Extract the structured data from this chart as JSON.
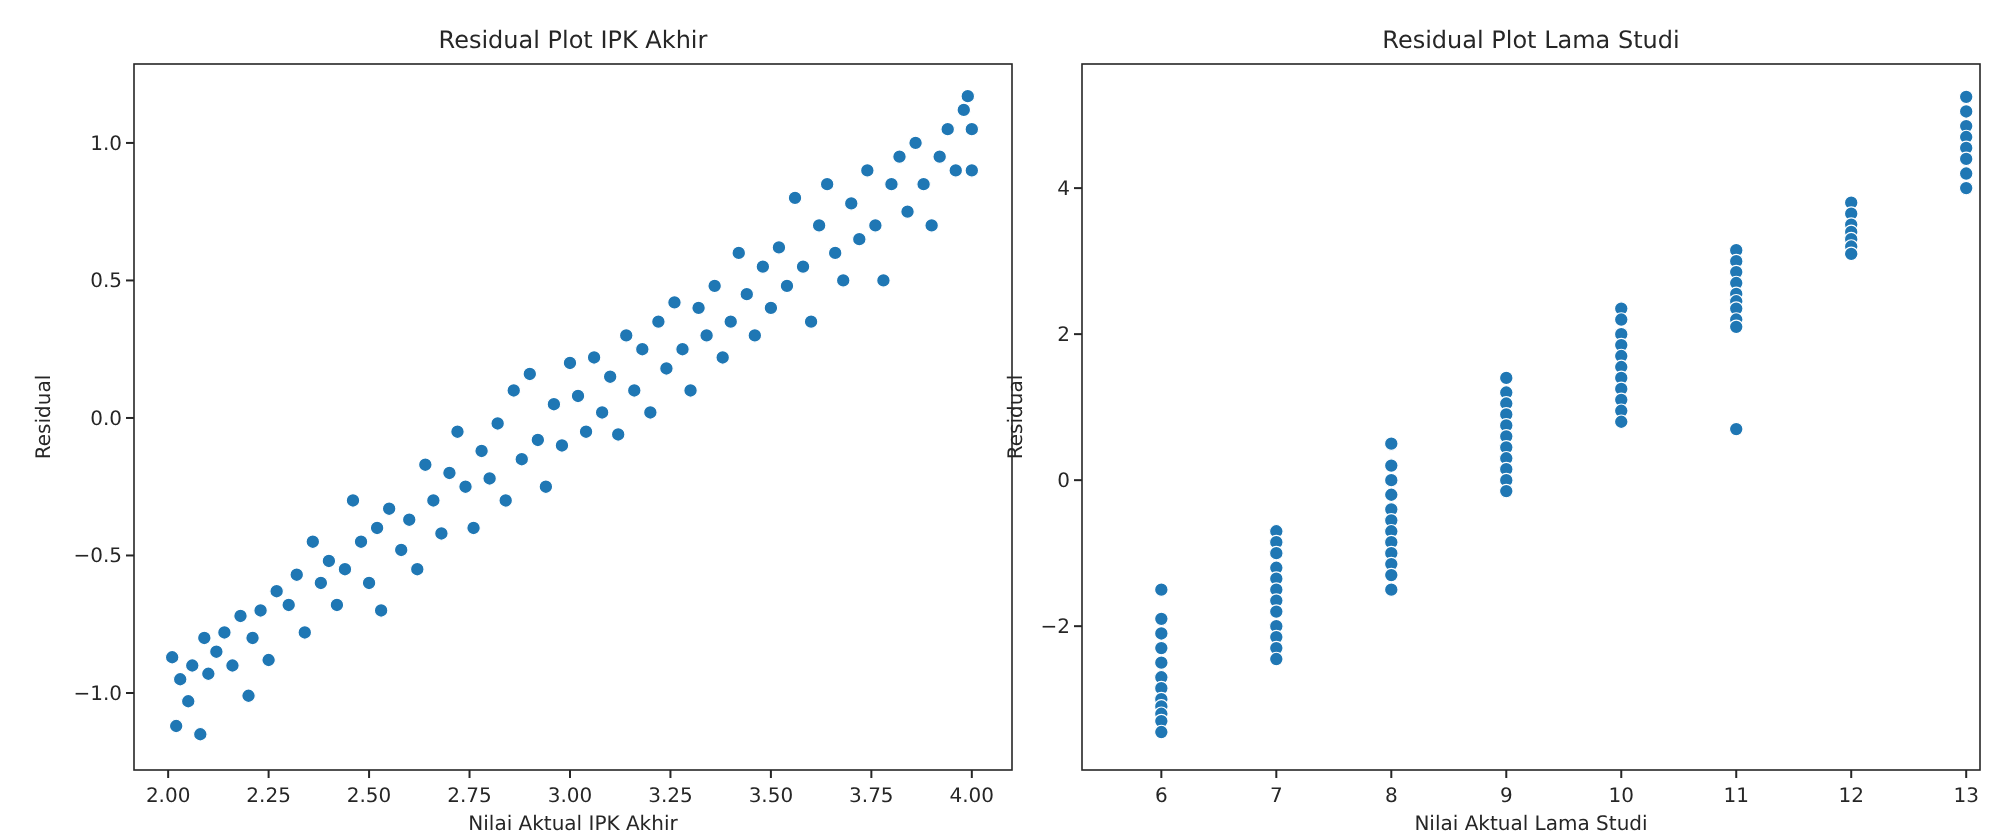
{
  "chart_data": [
    {
      "type": "scatter",
      "title": "Residual Plot IPK Akhir",
      "xlabel": "Nilai Aktual IPK Akhir",
      "ylabel": "Residual",
      "xlim": [
        1.915,
        4.1
      ],
      "ylim": [
        -1.28,
        1.287
      ],
      "xticks": [
        {
          "value": 2,
          "label": "2.00"
        },
        {
          "value": 2.25,
          "label": "2.25"
        },
        {
          "value": 2.5,
          "label": "2.50"
        },
        {
          "value": 2.75,
          "label": "2.75"
        },
        {
          "value": 3,
          "label": "3.00"
        },
        {
          "value": 3.25,
          "label": "3.25"
        },
        {
          "value": 3.5,
          "label": "3.50"
        },
        {
          "value": 3.75,
          "label": "3.75"
        },
        {
          "value": 4,
          "label": "4.00"
        }
      ],
      "yticks": [
        {
          "value": -1,
          "label": "−1.0"
        },
        {
          "value": -0.5,
          "label": "−0.5"
        },
        {
          "value": 0,
          "label": "0.0"
        },
        {
          "value": 0.5,
          "label": "0.5"
        },
        {
          "value": 1,
          "label": "1.0"
        }
      ],
      "grid": false,
      "marker": "circle",
      "series": [
        {
          "color": "#1f77b4",
          "x": [
            2.01,
            2.02,
            2.03,
            2.05,
            2.06,
            2.08,
            2.09,
            2.1,
            2.12,
            2.14,
            2.16,
            2.18,
            2.2,
            2.21,
            2.23,
            2.25,
            2.27,
            2.3,
            2.32,
            2.34,
            2.36,
            2.38,
            2.4,
            2.42,
            2.44,
            2.46,
            2.48,
            2.5,
            2.52,
            2.53,
            2.55,
            2.58,
            2.6,
            2.62,
            2.64,
            2.66,
            2.68,
            2.7,
            2.72,
            2.74,
            2.76,
            2.78,
            2.8,
            2.82,
            2.84,
            2.86,
            2.88,
            2.9,
            2.92,
            2.94,
            2.96,
            2.98,
            3.0,
            3.02,
            3.04,
            3.06,
            3.08,
            3.1,
            3.12,
            3.14,
            3.16,
            3.18,
            3.2,
            3.22,
            3.24,
            3.26,
            3.28,
            3.3,
            3.32,
            3.34,
            3.36,
            3.38,
            3.4,
            3.42,
            3.44,
            3.46,
            3.48,
            3.5,
            3.52,
            3.54,
            3.56,
            3.58,
            3.6,
            3.62,
            3.64,
            3.66,
            3.68,
            3.7,
            3.72,
            3.74,
            3.76,
            3.78,
            3.8,
            3.82,
            3.84,
            3.86,
            3.88,
            3.9,
            3.92,
            3.94,
            3.96,
            3.98,
            3.99,
            4.0,
            4.0
          ],
          "values": [
            -0.87,
            -1.12,
            -0.95,
            -1.03,
            -0.9,
            -1.15,
            -0.8,
            -0.93,
            -0.85,
            -0.78,
            -0.9,
            -0.72,
            -1.01,
            -0.8,
            -0.7,
            -0.88,
            -0.63,
            -0.68,
            -0.57,
            -0.78,
            -0.45,
            -0.6,
            -0.52,
            -0.68,
            -0.55,
            -0.3,
            -0.45,
            -0.6,
            -0.4,
            -0.7,
            -0.33,
            -0.48,
            -0.37,
            -0.55,
            -0.17,
            -0.3,
            -0.42,
            -0.2,
            -0.05,
            -0.25,
            -0.4,
            -0.12,
            -0.22,
            -0.02,
            -0.3,
            0.1,
            -0.15,
            0.16,
            -0.08,
            -0.25,
            0.05,
            -0.1,
            0.2,
            0.08,
            -0.05,
            0.22,
            0.02,
            0.15,
            -0.06,
            0.3,
            0.1,
            0.25,
            0.02,
            0.35,
            0.18,
            0.42,
            0.25,
            0.1,
            0.4,
            0.3,
            0.48,
            0.22,
            0.35,
            0.6,
            0.45,
            0.3,
            0.55,
            0.4,
            0.62,
            0.48,
            0.8,
            0.55,
            0.35,
            0.7,
            0.85,
            0.6,
            0.5,
            0.78,
            0.65,
            0.9,
            0.7,
            0.5,
            0.85,
            0.95,
            0.75,
            1.0,
            0.85,
            0.7,
            0.95,
            1.05,
            0.9,
            1.12,
            1.17,
            0.9,
            1.05
          ]
        }
      ]
    },
    {
      "type": "scatter",
      "title": "Residual Plot Lama Studi",
      "xlabel": "Nilai Aktual Lama Studi",
      "ylabel": "Residual",
      "xlim": [
        5.31,
        13.12
      ],
      "ylim": [
        -3.97,
        5.7
      ],
      "xticks": [
        6,
        7,
        8,
        9,
        10,
        11,
        12,
        13
      ],
      "yticks": [
        {
          "value": -2,
          "label": "−2"
        },
        0,
        2,
        4
      ],
      "grid": false,
      "marker": "circle",
      "series": [
        {
          "color": "#1f77b4",
          "x": [
            6,
            6,
            6,
            6,
            6,
            6,
            6,
            6,
            6,
            6,
            6,
            6,
            7,
            7,
            7,
            7,
            7,
            7,
            7,
            7,
            7,
            7,
            7,
            7,
            8,
            8,
            8,
            8,
            8,
            8,
            8,
            8,
            8,
            8,
            8,
            8,
            9,
            9,
            9,
            9,
            9,
            9,
            9,
            9,
            9,
            9,
            9,
            10,
            10,
            10,
            10,
            10,
            10,
            10,
            10,
            10,
            10,
            10,
            11,
            11,
            11,
            11,
            11,
            11,
            11,
            11,
            11,
            11,
            12,
            12,
            12,
            12,
            12,
            12,
            12,
            13,
            13,
            13,
            13,
            13,
            13,
            13,
            13
          ],
          "values": [
            -1.5,
            -1.9,
            -2.1,
            -2.3,
            -2.5,
            -2.7,
            -2.85,
            -3.0,
            -3.1,
            -3.2,
            -3.3,
            -3.45,
            -0.7,
            -0.85,
            -1.0,
            -1.2,
            -1.35,
            -1.5,
            -1.65,
            -1.8,
            -2.0,
            -2.15,
            -2.3,
            -2.45,
            0.5,
            0.2,
            0.0,
            -0.2,
            -0.4,
            -0.55,
            -0.7,
            -0.85,
            -1.0,
            -1.15,
            -1.3,
            -1.5,
            1.4,
            1.2,
            1.05,
            0.9,
            0.75,
            0.6,
            0.45,
            0.3,
            0.15,
            0.0,
            -0.15,
            2.35,
            2.2,
            2.0,
            1.85,
            1.7,
            1.55,
            1.4,
            1.25,
            1.1,
            0.95,
            0.8,
            3.15,
            3.0,
            2.85,
            2.7,
            2.55,
            2.45,
            2.35,
            2.2,
            2.1,
            0.7,
            3.8,
            3.65,
            3.5,
            3.4,
            3.3,
            3.2,
            3.1,
            5.25,
            5.05,
            4.85,
            4.7,
            4.55,
            4.4,
            4.2,
            4.0
          ]
        }
      ]
    }
  ]
}
